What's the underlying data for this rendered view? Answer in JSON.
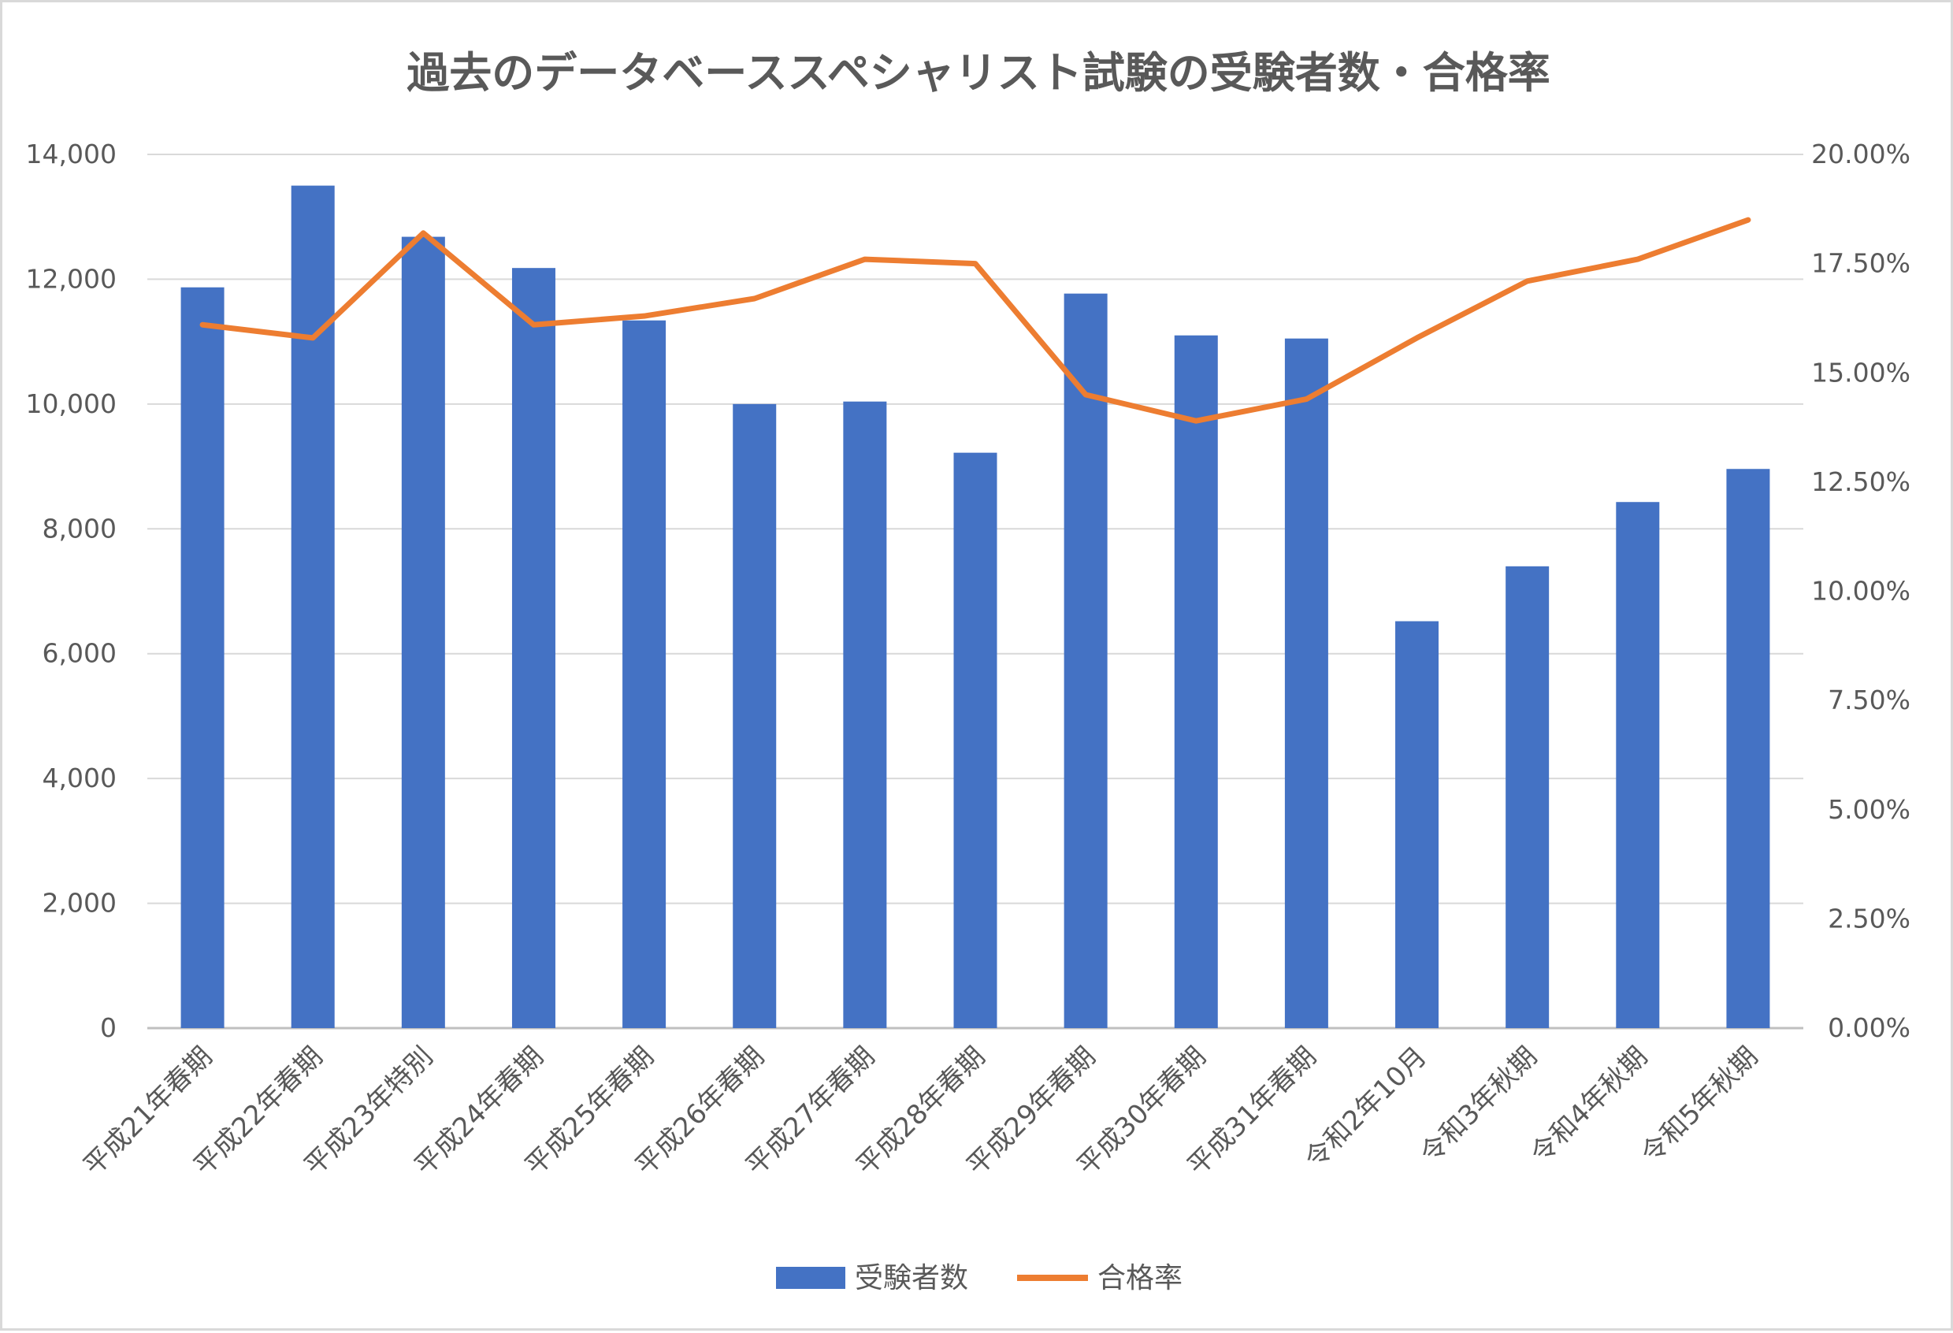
{
  "chart_data": {
    "type": "bar",
    "title": "過去のデータベーススペシャリスト試験の受験者数・合格率",
    "categories": [
      "平成21年春期",
      "平成22年春期",
      "平成23年特別",
      "平成24年春期",
      "平成25年春期",
      "平成26年春期",
      "平成27年春期",
      "平成28年春期",
      "平成29年春期",
      "平成30年春期",
      "平成31年春期",
      "令和2年10月",
      "令和3年秋期",
      "令和4年秋期",
      "令和5年秋期"
    ],
    "series": [
      {
        "name": "受験者数",
        "type": "bar",
        "axis": "left",
        "color": "#4472C4",
        "values": [
          11870,
          13500,
          12680,
          12180,
          11340,
          10000,
          10040,
          9220,
          11770,
          11100,
          11050,
          6520,
          7400,
          8430,
          8960
        ]
      },
      {
        "name": "合格率",
        "type": "line",
        "axis": "right",
        "color": "#ED7D31",
        "values": [
          16.1,
          15.8,
          18.2,
          16.1,
          16.3,
          16.7,
          17.6,
          17.5,
          14.5,
          13.9,
          14.4,
          15.8,
          17.1,
          17.6,
          18.5
        ]
      }
    ],
    "ylim_left": [
      0,
      14000
    ],
    "yticks_left": [
      "0",
      "2,000",
      "4,000",
      "6,000",
      "8,000",
      "10,000",
      "12,000",
      "14,000"
    ],
    "ylim_right": [
      0,
      20
    ],
    "yticks_right": [
      "0.00%",
      "2.50%",
      "5.00%",
      "7.50%",
      "10.00%",
      "12.50%",
      "15.00%",
      "17.50%",
      "20.00%"
    ],
    "grid": true,
    "legend_position": "bottom"
  }
}
